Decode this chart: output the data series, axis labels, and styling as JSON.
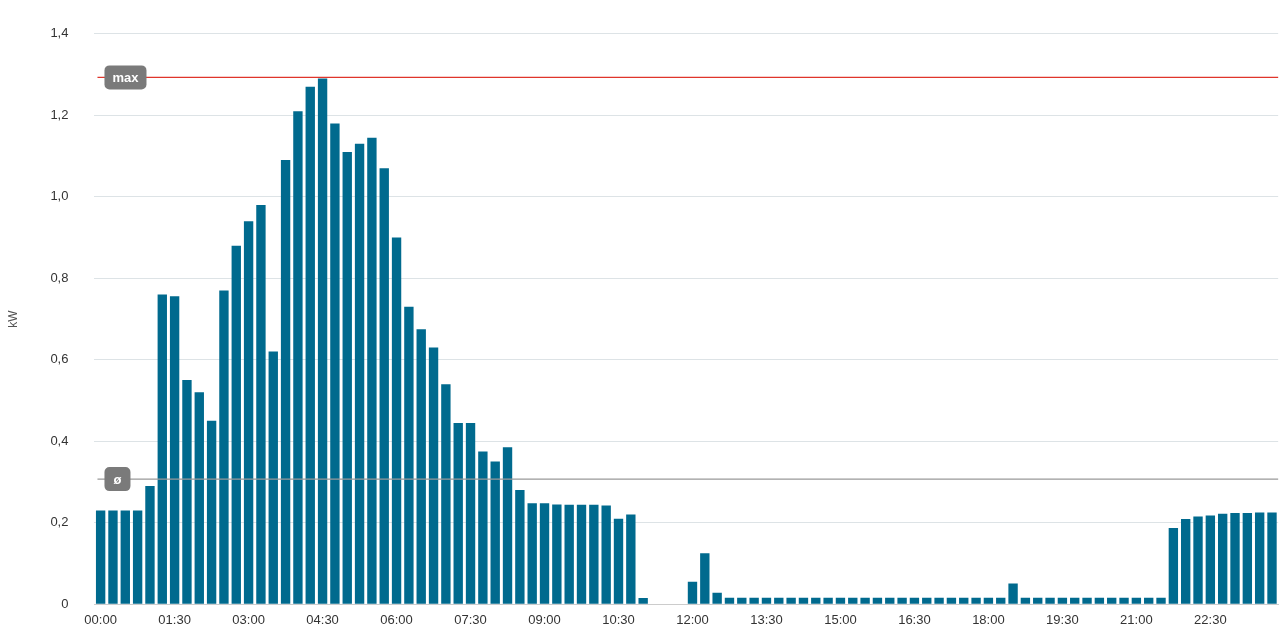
{
  "chart_data": {
    "type": "bar",
    "ylabel": "kW",
    "categories": [
      "00:00",
      null,
      null,
      null,
      null,
      null,
      "01:30",
      null,
      null,
      null,
      null,
      null,
      "03:00",
      null,
      null,
      null,
      null,
      null,
      "04:30",
      null,
      null,
      null,
      null,
      null,
      "06:00",
      null,
      null,
      null,
      null,
      null,
      "07:30",
      null,
      null,
      null,
      null,
      null,
      "09:00",
      null,
      null,
      null,
      null,
      null,
      "10:30",
      null,
      null,
      null,
      null,
      null,
      "12:00",
      null,
      null,
      null,
      null,
      null,
      "13:30",
      null,
      null,
      null,
      null,
      null,
      "15:00",
      null,
      null,
      null,
      null,
      null,
      "16:30",
      null,
      null,
      null,
      null,
      null,
      "18:00",
      null,
      null,
      null,
      null,
      null,
      "19:30",
      null,
      null,
      null,
      null,
      null,
      "21:00",
      null,
      null,
      null,
      null,
      null,
      "22:30",
      null,
      null,
      null,
      null,
      null
    ],
    "values": [
      0.23,
      0.23,
      0.23,
      0.23,
      0.29,
      0.76,
      0.756,
      0.55,
      0.52,
      0.45,
      0.77,
      0.88,
      0.94,
      0.98,
      0.62,
      1.09,
      1.21,
      1.27,
      1.29,
      1.18,
      1.11,
      1.13,
      1.145,
      1.07,
      0.9,
      0.73,
      0.675,
      0.63,
      0.54,
      0.445,
      0.445,
      0.375,
      0.35,
      0.385,
      0.28,
      0.248,
      0.248,
      0.245,
      0.244,
      0.244,
      0.244,
      0.242,
      0.21,
      0.22,
      0.015,
      null,
      null,
      null,
      0.055,
      0.125,
      0.028,
      0.016,
      0.016,
      0.016,
      0.016,
      0.016,
      0.016,
      0.016,
      0.016,
      0.016,
      0.016,
      0.016,
      0.016,
      0.016,
      0.016,
      0.016,
      0.016,
      0.016,
      0.016,
      0.016,
      0.016,
      0.016,
      0.016,
      0.016,
      0.051,
      0.016,
      0.016,
      0.016,
      0.016,
      0.016,
      0.016,
      0.016,
      0.016,
      0.016,
      0.016,
      0.016,
      0.016,
      0.187,
      0.209,
      0.215,
      0.218,
      0.222,
      0.224,
      0.224,
      0.225,
      0.225
    ],
    "color": "#006a8e",
    "ylim": [
      0,
      1.4
    ],
    "yticks": [
      0,
      {
        "value": 0.2,
        "label": "0,2"
      },
      {
        "value": 0.4,
        "label": "0,4"
      },
      {
        "value": 0.6,
        "label": "0,6"
      },
      {
        "value": 0.8,
        "label": "0,8"
      },
      {
        "value": 1.0,
        "label": "1,0"
      },
      {
        "value": 1.2,
        "label": "1,2"
      },
      {
        "value": 1.4,
        "label": "1,4"
      }
    ],
    "grid": "y",
    "ref_lines": [
      {
        "axis": "y",
        "value": 1.293,
        "label": "max",
        "color": "#e0352b"
      },
      {
        "axis": "y",
        "value": 0.307,
        "label": "ø",
        "color": "#999999"
      }
    ]
  }
}
